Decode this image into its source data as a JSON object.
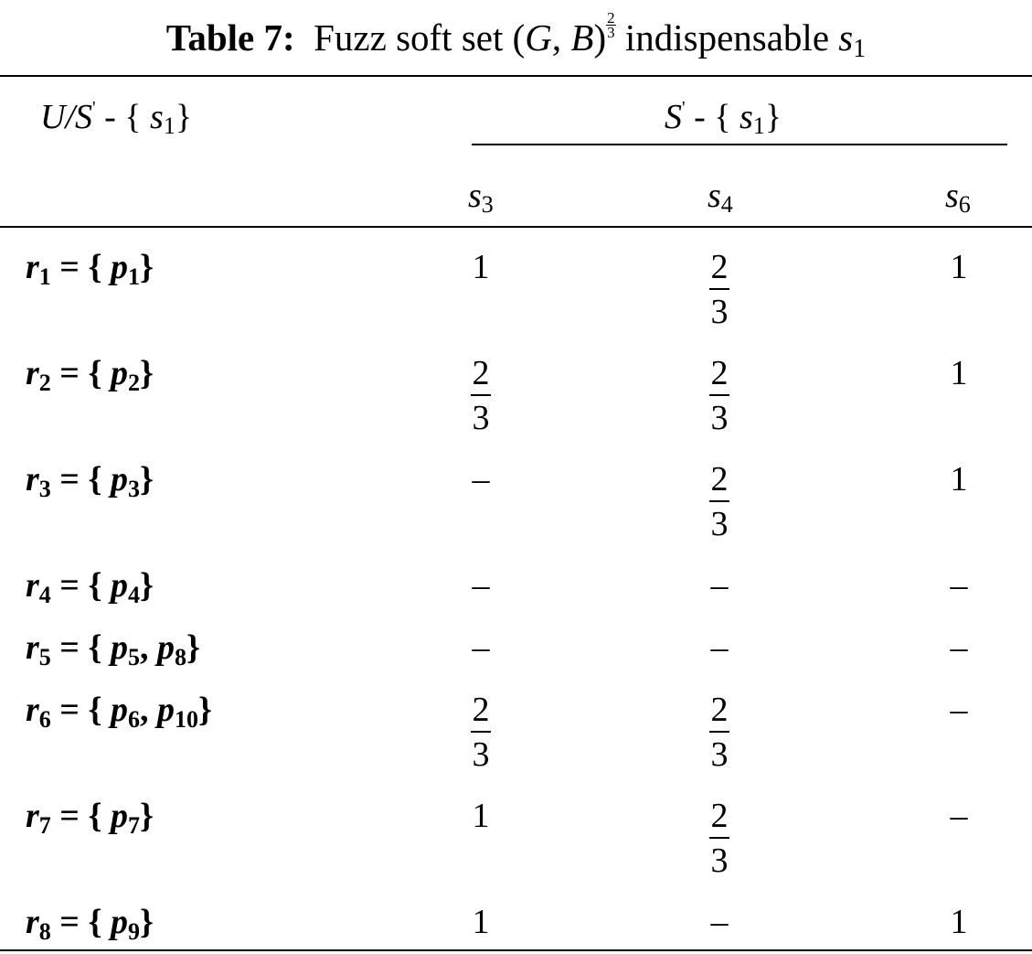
{
  "caption": {
    "label": "Table 7:",
    "prefix": "Fuzz soft set",
    "set_open": "(",
    "set_g": "G",
    "set_comma": ", ",
    "set_b": "B",
    "set_close": ")",
    "exp_num": "2",
    "exp_den": "3",
    "suffix": "indispensable",
    "s_var": "s",
    "s_sub": "1"
  },
  "header": {
    "left": {
      "u": "U/S",
      "prime": "'",
      "minus": " - { ",
      "s": "s",
      "sub": "1",
      "close": "}"
    },
    "group": {
      "s": "S",
      "prime": "'",
      "minus": " - { ",
      "s2": "s",
      "sub": "1",
      "close": "}"
    },
    "columns": [
      {
        "var": "s",
        "sub": "3"
      },
      {
        "var": "s",
        "sub": "4"
      },
      {
        "var": "s",
        "sub": "6"
      }
    ]
  },
  "frac": {
    "num": "2",
    "den": "3"
  },
  "rows": [
    {
      "r": "r",
      "rsub": "1",
      "eq": " = { ",
      "items": [
        {
          "p": "p",
          "sub": "1"
        }
      ],
      "close": "}",
      "values": [
        "1",
        "2/3",
        "1"
      ]
    },
    {
      "r": "r",
      "rsub": "2",
      "eq": " = { ",
      "items": [
        {
          "p": "p",
          "sub": "2"
        }
      ],
      "close": "}",
      "values": [
        "2/3",
        "2/3",
        "1"
      ]
    },
    {
      "r": "r",
      "rsub": "3",
      "eq": " = { ",
      "items": [
        {
          "p": "p",
          "sub": "3"
        }
      ],
      "close": "}",
      "values": [
        "–",
        "2/3",
        "1"
      ]
    },
    {
      "r": "r",
      "rsub": "4",
      "eq": " = { ",
      "items": [
        {
          "p": "p",
          "sub": "4"
        }
      ],
      "close": "}",
      "values": [
        "–",
        "–",
        "–"
      ]
    },
    {
      "r": "r",
      "rsub": "5",
      "eq": " = { ",
      "items": [
        {
          "p": "p",
          "sub": "5"
        },
        {
          "p": "p",
          "sub": "8"
        }
      ],
      "close": "}",
      "values": [
        "–",
        "–",
        "–"
      ]
    },
    {
      "r": "r",
      "rsub": "6",
      "eq": " = { ",
      "items": [
        {
          "p": "p",
          "sub": "6"
        },
        {
          "p": "p",
          "sub": "10"
        }
      ],
      "close": "}",
      "values": [
        "2/3",
        "2/3",
        "–"
      ]
    },
    {
      "r": "r",
      "rsub": "7",
      "eq": " = { ",
      "items": [
        {
          "p": "p",
          "sub": "7"
        }
      ],
      "close": "}",
      "values": [
        "1",
        "2/3",
        "–"
      ]
    },
    {
      "r": "r",
      "rsub": "8",
      "eq": " = { ",
      "items": [
        {
          "p": "p",
          "sub": "9"
        }
      ],
      "close": "}",
      "values": [
        "1",
        "–",
        "1"
      ]
    }
  ]
}
